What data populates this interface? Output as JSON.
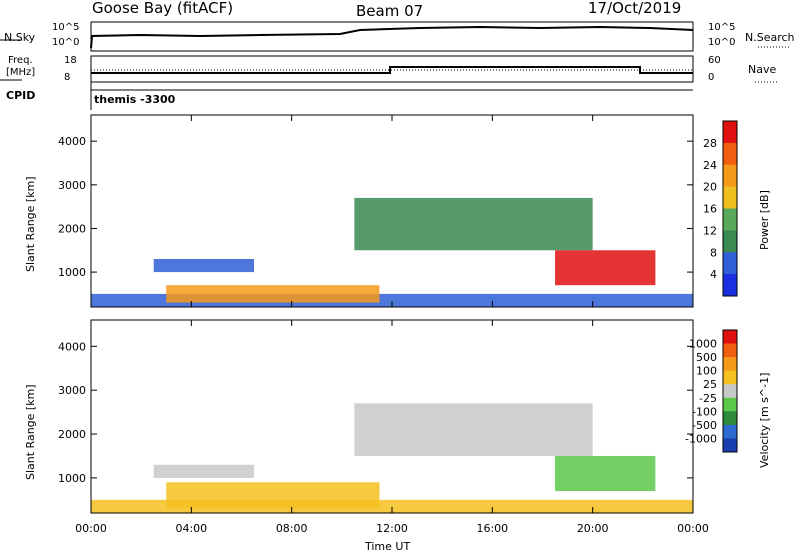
{
  "header": {
    "station": "Goose Bay (fitACF)",
    "beam": "Beam 07",
    "date": "17/Oct/2019"
  },
  "status_panel": {
    "nsky_label": "N.Sky",
    "nsearch_label": "N.Search",
    "left_ticks": [
      "10^5",
      "10^0"
    ],
    "right_ticks": [
      "10^5",
      "10^0"
    ],
    "freq_label_1": "Freq.",
    "freq_label_2": "[MHz]",
    "freq_ticks": [
      "18",
      "8"
    ],
    "nave_label": "Nave",
    "nave_ticks": [
      "60",
      "0"
    ],
    "cpid_label": "CPID",
    "cpid_value": "themis -3300"
  },
  "colors": {
    "power_scale": [
      "#1a2fe0",
      "#2f5fd6",
      "#3a8a52",
      "#5aa85a",
      "#f0c020",
      "#f59a1a",
      "#f06010",
      "#e01010"
    ],
    "velocity_scale": [
      "#1a3fb0",
      "#2e6ad0",
      "#2e8a3c",
      "#5cc84a",
      "#c8c8c8",
      "#f5c020",
      "#f59a1a",
      "#f06010",
      "#e01010"
    ]
  },
  "chart_data": [
    {
      "type": "heatmap",
      "title": "",
      "xlabel": "Time UT",
      "ylabel": "Slant Range [km]",
      "x_ticks": [
        "00:00",
        "04:00",
        "08:00",
        "12:00",
        "16:00",
        "20:00",
        "00:00"
      ],
      "xlim_hours": [
        0,
        24
      ],
      "y_ticks": [
        "1000",
        "2000",
        "3000",
        "4000"
      ],
      "ylim": [
        200,
        4600
      ],
      "colorbar": {
        "label": "Power [dB]",
        "ticks": [
          "4",
          "8",
          "12",
          "16",
          "20",
          "24",
          "28"
        ]
      },
      "regions": [
        {
          "t0": 0,
          "t1": 24,
          "r0": 200,
          "r1": 500,
          "level": 1
        },
        {
          "t0": 2.5,
          "t1": 6.5,
          "r0": 1000,
          "r1": 1300,
          "level": 1
        },
        {
          "t0": 3,
          "t1": 11.5,
          "r0": 300,
          "r1": 700,
          "level": 5
        },
        {
          "t0": 10.5,
          "t1": 20,
          "r0": 1500,
          "r1": 2700,
          "level": 2
        },
        {
          "t0": 18.5,
          "t1": 22.5,
          "r0": 700,
          "r1": 1500,
          "level": 7
        }
      ]
    },
    {
      "type": "heatmap",
      "title": "",
      "xlabel": "Time UT",
      "ylabel": "Slant Range [km]",
      "x_ticks": [
        "00:00",
        "04:00",
        "08:00",
        "12:00",
        "16:00",
        "20:00",
        "00:00"
      ],
      "xlim_hours": [
        0,
        24
      ],
      "y_ticks": [
        "1000",
        "2000",
        "3000",
        "4000"
      ],
      "ylim": [
        200,
        4600
      ],
      "colorbar": {
        "label": "Velocity [m s^-1]",
        "ticks": [
          "1000",
          "500",
          "100",
          "25",
          "-25",
          "-100",
          "-500",
          "-1000"
        ]
      },
      "regions": [
        {
          "t0": 0,
          "t1": 24,
          "r0": 200,
          "r1": 500,
          "level": 5
        },
        {
          "t0": 2.5,
          "t1": 6.5,
          "r0": 1000,
          "r1": 1300,
          "level": 4
        },
        {
          "t0": 3,
          "t1": 11.5,
          "r0": 300,
          "r1": 900,
          "level": 5
        },
        {
          "t0": 10.5,
          "t1": 20,
          "r0": 1500,
          "r1": 2700,
          "level": 4
        },
        {
          "t0": 18.5,
          "t1": 22.5,
          "r0": 700,
          "r1": 1500,
          "level": 3
        }
      ]
    }
  ]
}
